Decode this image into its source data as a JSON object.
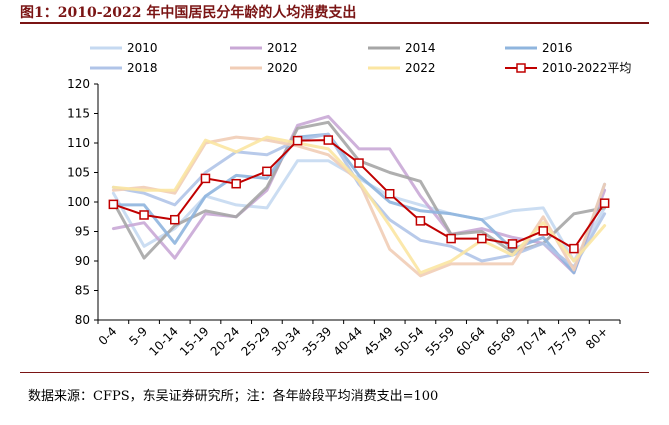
{
  "figure": {
    "title": "图1：2010-2022 年中国居民分年龄的人均消费支出",
    "source": "数据来源：CFPS，东吴证券研究所；注：各年龄段平均消费支出=100"
  },
  "chart_data": {
    "type": "line",
    "title": "图1：2010-2022 年中国居民分年龄的人均消费支出",
    "xlabel": "",
    "ylabel": "",
    "ylim": [
      80,
      120
    ],
    "yticks": [
      "80",
      "85",
      "90",
      "95",
      "100",
      "105",
      "110",
      "115",
      "120"
    ],
    "categories": [
      "0-4",
      "5-9",
      "10-14",
      "15-19",
      "20-24",
      "25-29",
      "30-34",
      "35-39",
      "40-44",
      "45-49",
      "50-54",
      "55-59",
      "60-64",
      "65-69",
      "70-74",
      "75-79",
      "80+"
    ],
    "legend_position": "top",
    "series": [
      {
        "name": "2010",
        "color": "#c5d9f1",
        "values": [
          101.5,
          92.5,
          95.5,
          101,
          99.5,
          99,
          107,
          107,
          104,
          101,
          99.5,
          98,
          97,
          98.5,
          99,
          90,
          99
        ]
      },
      {
        "name": "2012",
        "color": "#c9a8d6",
        "values": [
          95.5,
          96.5,
          90.5,
          98,
          97.5,
          102,
          113,
          114.5,
          109,
          109,
          101,
          94.5,
          95.5,
          94,
          93,
          88,
          102
        ]
      },
      {
        "name": "2014",
        "color": "#a6a6a6",
        "values": [
          100,
          90.5,
          96,
          98.5,
          97.5,
          102.5,
          112.5,
          113.5,
          107,
          105,
          103.5,
          94.5,
          95,
          91.5,
          93,
          98,
          99
        ]
      },
      {
        "name": "2016",
        "color": "#8fb5de",
        "values": [
          99.5,
          99.5,
          93,
          101,
          104.5,
          104,
          111,
          111.5,
          104.5,
          100,
          98.5,
          98,
          97,
          92,
          94,
          88,
          103
        ]
      },
      {
        "name": "2018",
        "color": "#b0c4e8",
        "values": [
          102.5,
          101.5,
          99.5,
          105,
          108.5,
          108,
          110.5,
          111.5,
          103,
          97,
          93.5,
          92.5,
          90,
          91,
          93,
          89,
          98
        ]
      },
      {
        "name": "2020",
        "color": "#f1cdb6",
        "values": [
          102,
          102.5,
          101.5,
          110,
          111,
          110.5,
          109.5,
          108,
          103.5,
          92,
          87.5,
          89.5,
          89.5,
          89.5,
          97.5,
          88.5,
          103
        ]
      },
      {
        "name": "2022",
        "color": "#fbe6a2",
        "values": [
          102.5,
          102,
          102,
          110.5,
          108.5,
          111,
          110,
          109,
          103.5,
          96,
          88,
          90,
          93.5,
          91,
          96.5,
          90,
          96
        ]
      },
      {
        "name": "2010-2022平均",
        "color": "#c00000",
        "marker": "square",
        "values": [
          99.6,
          97.8,
          97,
          104,
          103.1,
          105.2,
          110.4,
          110.5,
          106.6,
          101.4,
          96.8,
          93.8,
          93.8,
          92.9,
          95.1,
          92.1,
          99.8
        ]
      }
    ]
  }
}
